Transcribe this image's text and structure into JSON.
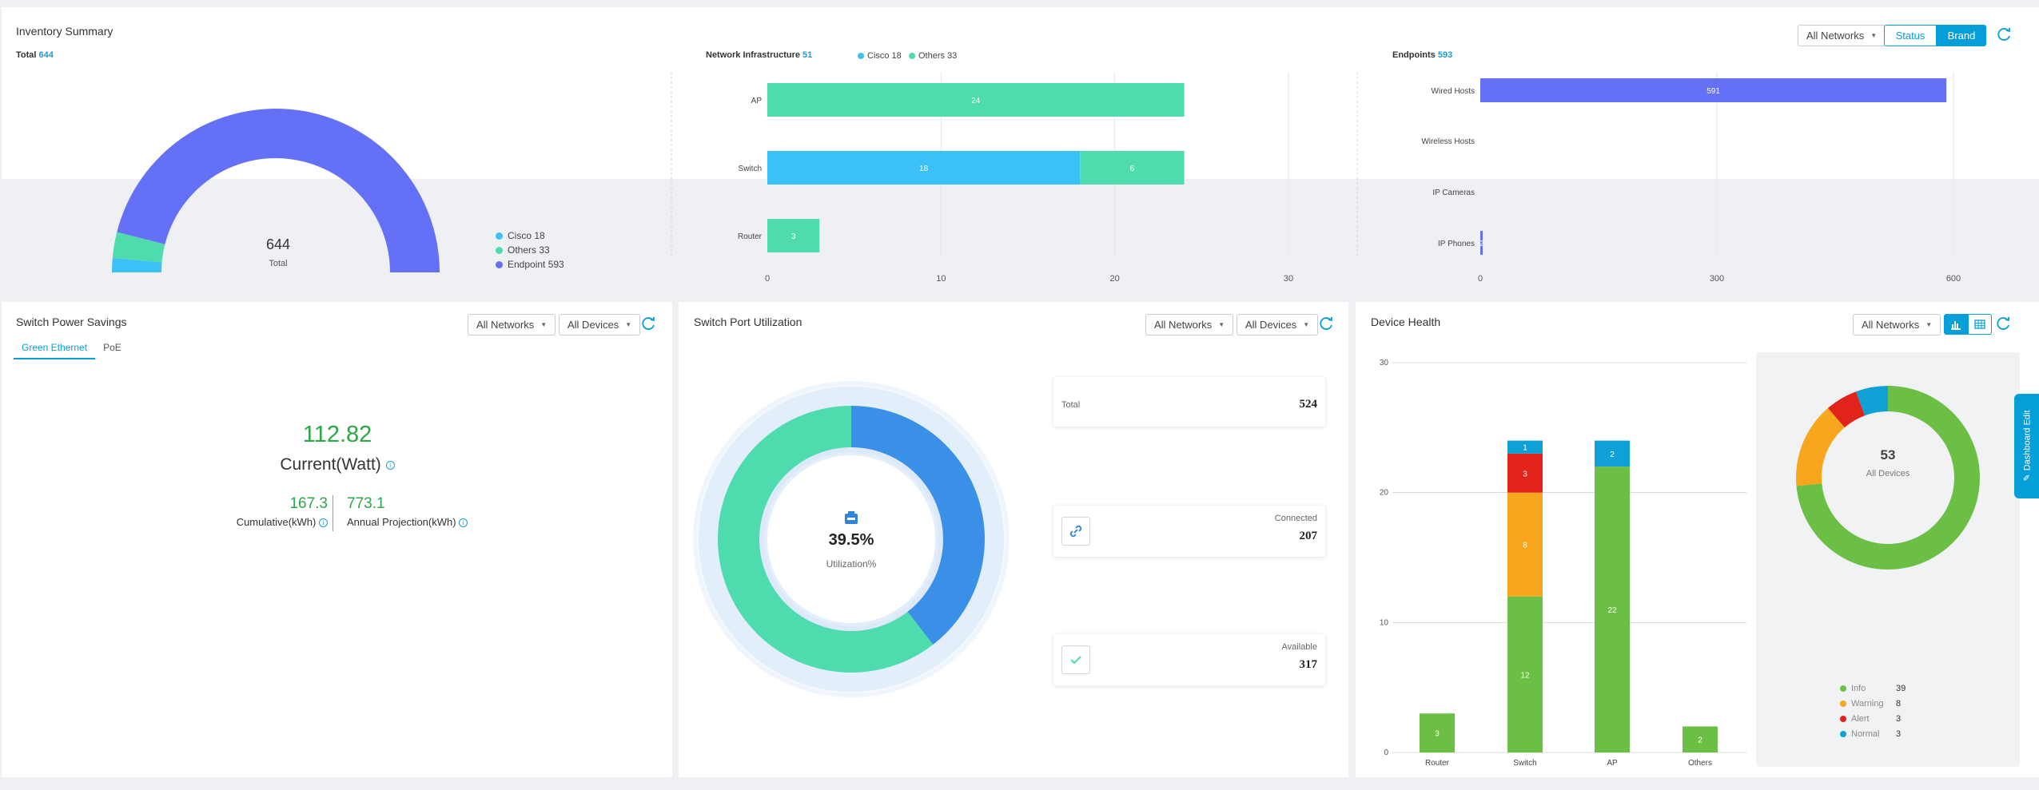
{
  "inventory": {
    "title": "Inventory Summary",
    "filter": "All Networks",
    "toggle": [
      "Status",
      "Brand"
    ],
    "total_label": "Total",
    "total_value": "644",
    "gauge_value": "644",
    "gauge_label": "Total",
    "gauge_legend": [
      {
        "label": "Cisco 18",
        "color": "#3bc1f5"
      },
      {
        "label": "Others 33",
        "color": "#4edcaf"
      },
      {
        "label": "Endpoint 593",
        "color": "#6470f5"
      }
    ],
    "netinfra_label": "Network Infrastructure",
    "netinfra_value": "51",
    "netinfra_legend": [
      {
        "label": "Cisco 18",
        "color": "#3bc1f5"
      },
      {
        "label": "Others 33",
        "color": "#4edcaf"
      }
    ],
    "endpoints_label": "Endpoints",
    "endpoints_value": "593"
  },
  "chart_data": [
    {
      "type": "pie",
      "title": "Total 644",
      "categories": [
        "Cisco",
        "Others",
        "Endpoint"
      ],
      "values": [
        18,
        33,
        593
      ],
      "colors": [
        "#3bc1f5",
        "#4edcaf",
        "#6470f5"
      ]
    },
    {
      "type": "bar",
      "title": "Network Infrastructure 51",
      "orientation": "horizontal",
      "stacked": true,
      "categories": [
        "AP",
        "Switch",
        "Router"
      ],
      "series": [
        {
          "name": "Cisco",
          "values": [
            0,
            18,
            0
          ],
          "color": "#3bc1f5"
        },
        {
          "name": "Others",
          "values": [
            24,
            6,
            3
          ],
          "color": "#4edcaf"
        }
      ],
      "xticks": [
        "0",
        "10",
        "20",
        "30"
      ],
      "xlim": [
        0,
        30
      ]
    },
    {
      "type": "bar",
      "title": "Endpoints 593",
      "orientation": "horizontal",
      "categories": [
        "Wired Hosts",
        "Wireless Hosts",
        "IP Cameras",
        "IP Phones"
      ],
      "values": [
        591,
        0,
        0,
        2
      ],
      "color": "#6470f5",
      "xticks": [
        "0",
        "300",
        "600"
      ],
      "xlim": [
        0,
        600
      ]
    },
    {
      "type": "bar",
      "title": "Device Health",
      "stacked": true,
      "categories": [
        "Router",
        "Switch",
        "AP",
        "Others"
      ],
      "series": [
        {
          "name": "Info",
          "values": [
            3,
            12,
            22,
            2
          ],
          "color": "#6cbf45"
        },
        {
          "name": "Warning",
          "values": [
            0,
            8,
            0,
            0
          ],
          "color": "#f9a61f"
        },
        {
          "name": "Alert",
          "values": [
            0,
            3,
            0,
            0
          ],
          "color": "#e2231a"
        },
        {
          "name": "Normal",
          "values": [
            0,
            1,
            2,
            0
          ],
          "color": "#0fa1d6"
        }
      ],
      "yticks": [
        "0",
        "10",
        "20",
        "30"
      ],
      "ylim": [
        0,
        30
      ]
    },
    {
      "type": "pie",
      "title": "53 All Devices",
      "categories": [
        "Info",
        "Warning",
        "Alert",
        "Normal"
      ],
      "values": [
        39,
        8,
        3,
        3
      ],
      "colors": [
        "#6cbf45",
        "#f9a61f",
        "#e2231a",
        "#0fa1d6"
      ]
    },
    {
      "type": "pie",
      "title": "39.5% Utilization%",
      "categories": [
        "Connected",
        "Available"
      ],
      "values": [
        207,
        317
      ],
      "colors": [
        "#3a8fe6",
        "#4edcaf"
      ]
    }
  ],
  "power": {
    "title": "Switch Power Savings",
    "filter_network": "All Networks",
    "filter_devices": "All Devices",
    "tabs": [
      "Green Ethernet",
      "PoE"
    ],
    "current_value": "112.82",
    "current_label": "Current(Watt)",
    "cumulative_value": "167.3",
    "cumulative_label": "Cumulative(kWh)",
    "annual_value": "773.1",
    "annual_label": "Annual Projection(kWh)"
  },
  "port": {
    "title": "Switch Port Utilization",
    "filter_network": "All Networks",
    "filter_devices": "All Devices",
    "center_value": "39.5%",
    "center_label": "Utilization%",
    "total_label": "Total",
    "total_value": "524",
    "connected_label": "Connected",
    "connected_value": "207",
    "available_label": "Available",
    "available_value": "317"
  },
  "health": {
    "title": "Device Health",
    "filter_network": "All Networks",
    "donut_value": "53",
    "donut_label": "All Devices",
    "legend": [
      {
        "label": "Info",
        "value": "39",
        "color": "#6cbf45"
      },
      {
        "label": "Warning",
        "value": "8",
        "color": "#f9a61f"
      },
      {
        "label": "Alert",
        "value": "3",
        "color": "#e2231a"
      },
      {
        "label": "Normal",
        "value": "3",
        "color": "#0fa1d6"
      }
    ]
  },
  "side_tab": "Dashboard Edit"
}
